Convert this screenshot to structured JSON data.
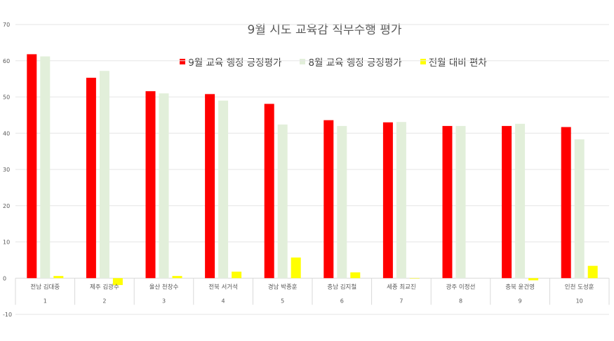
{
  "chart_data": {
    "type": "bar",
    "title": "9월 시도 교육감 직무수행 평가",
    "ylim": [
      -10,
      70
    ],
    "yticks": [
      -10,
      0,
      10,
      20,
      30,
      40,
      50,
      60,
      70
    ],
    "grid": true,
    "legend_position": "top",
    "categories": [
      "전남 김대중",
      "제주 김광수",
      "울산 천창수",
      "전북 서거석",
      "경남 박종훈",
      "충남 김지철",
      "세종 최교진",
      "광주 이정선",
      "충북 윤건영",
      "인천 도성훈"
    ],
    "ranks": [
      "1",
      "2",
      "3",
      "4",
      "5",
      "6",
      "7",
      "8",
      "9",
      "10"
    ],
    "series": [
      {
        "name": "9월 교육 행정 긍정평가",
        "color": "#ff0000",
        "values": [
          61.8,
          55.3,
          51.6,
          50.8,
          48.1,
          43.6,
          43.0,
          42.0,
          42.0,
          41.7
        ]
      },
      {
        "name": "8월 교육 행정 긍정평가",
        "color": "#e2efda",
        "values": [
          61.2,
          57.2,
          51.0,
          49.0,
          42.4,
          42.0,
          43.1,
          42.0,
          42.6,
          38.3
        ]
      },
      {
        "name": "전월 대비 편차",
        "color": "#ffff00",
        "values": [
          0.6,
          -1.9,
          0.6,
          1.8,
          5.7,
          1.6,
          -0.1,
          0.0,
          -0.6,
          3.4
        ]
      }
    ]
  }
}
